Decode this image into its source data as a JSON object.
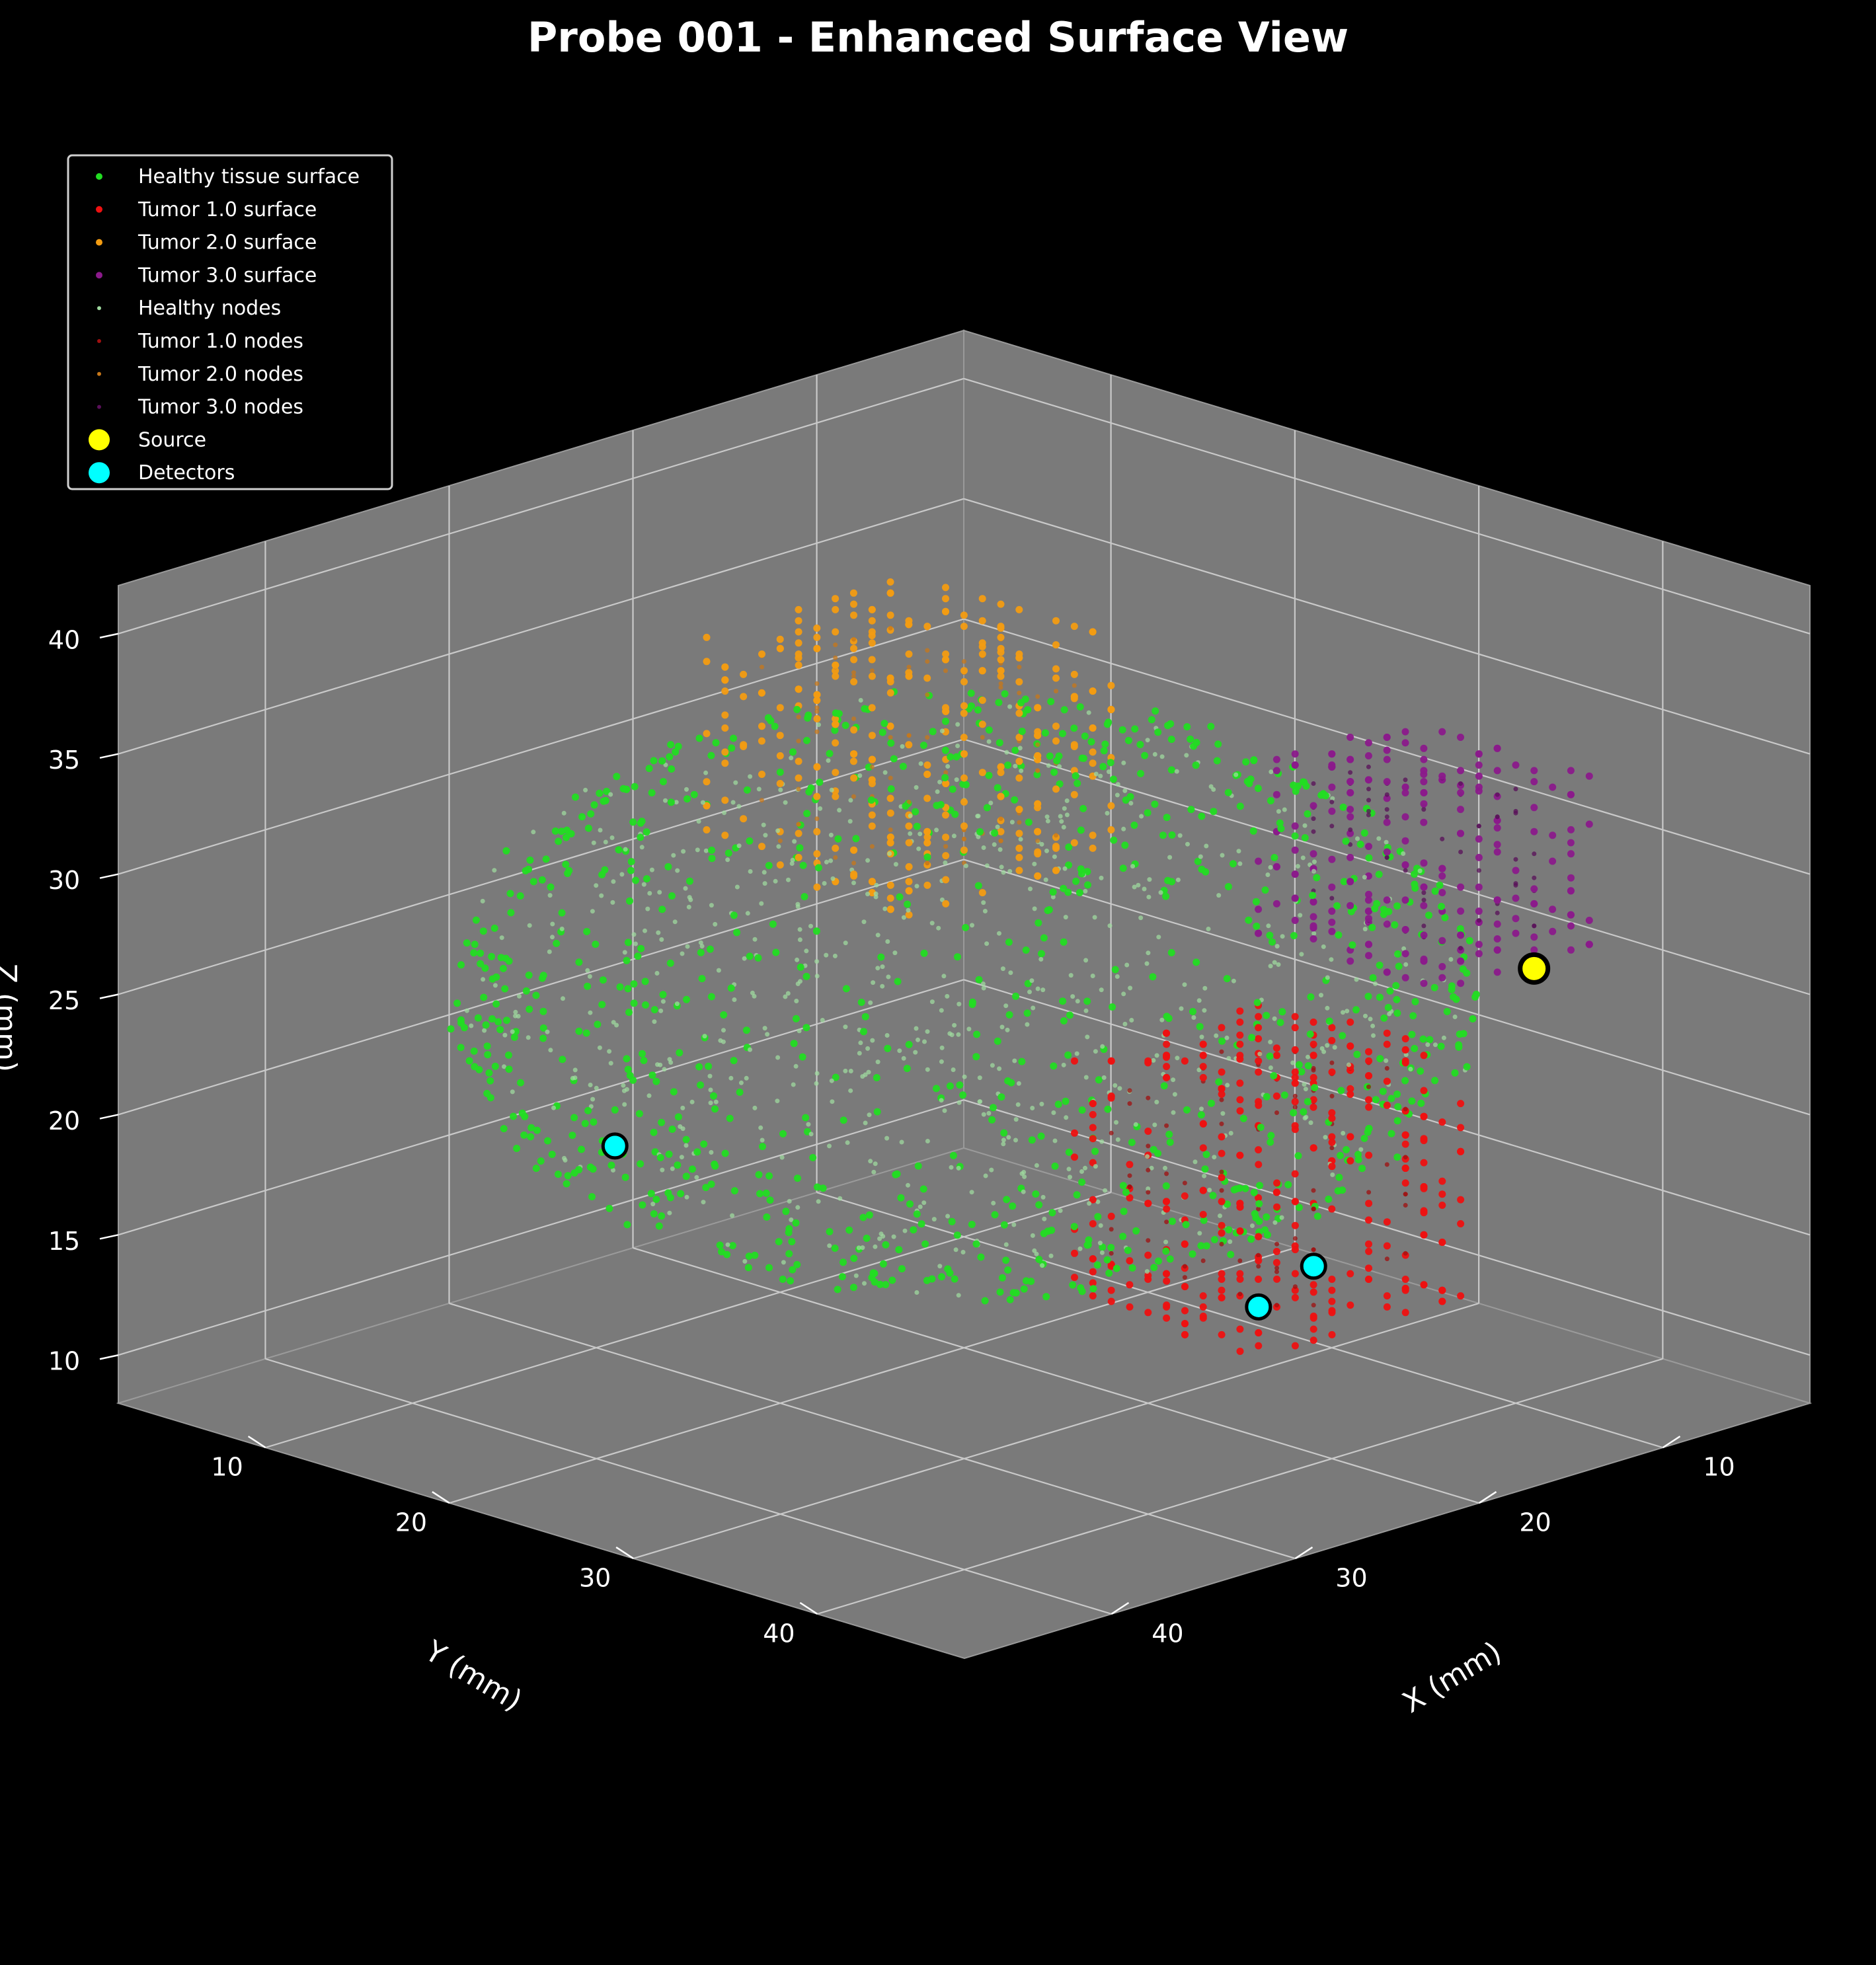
{
  "chart_data": {
    "type": "scatter",
    "title": "Probe 001 - Enhanced Surface View",
    "xlabel": "X (mm)",
    "ylabel": "Y (mm)",
    "zlabel": "Z (mm)",
    "xlim": [
      2,
      48
    ],
    "ylim": [
      2,
      48
    ],
    "zlim": [
      8,
      42
    ],
    "x_ticks": [
      "10",
      "20",
      "30",
      "40"
    ],
    "y_ticks": [
      "10",
      "20",
      "30",
      "40"
    ],
    "z_ticks": [
      "10",
      "15",
      "20",
      "25",
      "30",
      "35",
      "40"
    ],
    "grid": true,
    "legend_placement": "upper-left",
    "background": "#000000",
    "pane_color": "#7a7a7a",
    "series": [
      {
        "name": "Healthy tissue surface",
        "color": "#22dd22",
        "shape": "sphere",
        "center": [
          25,
          25,
          25
        ],
        "radius": 20,
        "count": 900
      },
      {
        "name": "Tumor 1.0 surface",
        "color": "#ee1111",
        "shape": "box",
        "min": [
          17,
          34,
          15
        ],
        "max": [
          28,
          44,
          25
        ],
        "count": 320
      },
      {
        "name": "Tumor 2.0 surface",
        "color": "#f39c12",
        "shape": "box",
        "min": [
          17,
          14,
          29
        ],
        "max": [
          28,
          25,
          38
        ],
        "count": 320
      },
      {
        "name": "Tumor 3.0 surface",
        "color": "#8b1a8b",
        "shape": "box",
        "min": [
          10,
          34,
          28
        ],
        "max": [
          18,
          44,
          35
        ],
        "count": 220
      },
      {
        "name": "Healthy nodes",
        "color": "#9fd99f",
        "shape": "ball",
        "center": [
          25,
          25,
          25
        ],
        "radius": 20,
        "count": 700
      },
      {
        "name": "Tumor 1.0 nodes",
        "color": "#a01010",
        "shape": "box",
        "min": [
          18,
          35,
          16
        ],
        "max": [
          27,
          43,
          24
        ],
        "count": 80
      },
      {
        "name": "Tumor 2.0 nodes",
        "color": "#c8781a",
        "shape": "box",
        "min": [
          18,
          15,
          30
        ],
        "max": [
          27,
          24,
          37
        ],
        "count": 80
      },
      {
        "name": "Tumor 3.0 nodes",
        "color": "#5a105a",
        "shape": "box",
        "min": [
          11,
          35,
          29
        ],
        "max": [
          17,
          43,
          34
        ],
        "count": 60
      }
    ],
    "source": {
      "name": "Source",
      "color": "#ffff00",
      "points": [
        [
          5,
          36,
          24
        ]
      ]
    },
    "detectors": {
      "name": "Detectors",
      "color": "#00ffff",
      "points": [
        [
          27,
          46,
          19
        ],
        [
          30,
          46,
          18
        ],
        [
          46,
          27,
          24
        ]
      ]
    },
    "legend_entries": [
      "Healthy tissue surface",
      "Tumor 1.0 surface",
      "Tumor 2.0 surface",
      "Tumor 3.0 surface",
      "Healthy nodes",
      "Tumor 1.0 nodes",
      "Tumor 2.0 nodes",
      "Tumor 3.0 nodes",
      "Source",
      "Detectors"
    ]
  }
}
